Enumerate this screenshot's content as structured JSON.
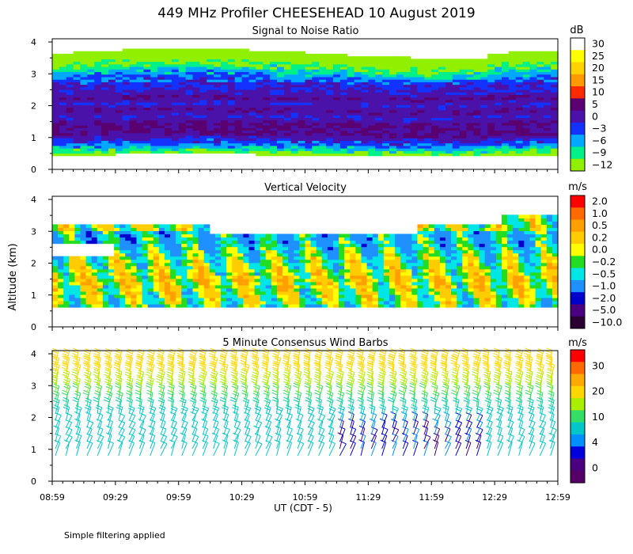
{
  "title": "449 MHz Profiler CHEESEHEAD 10 August 2019",
  "footnote": "Simple filtering applied",
  "ylabel": "Altitude (km)",
  "xlabel": "UT  (CDT - 5)",
  "chart_data": [
    {
      "type": "heatmap",
      "title": "Signal to Noise Ratio",
      "xlabel": "UT  (CDT - 5)",
      "ylabel": "Altitude (km)",
      "x_ticks": [
        "08:59",
        "09:29",
        "09:59",
        "10:29",
        "10:59",
        "11:29",
        "11:59",
        "12:29",
        "12:59"
      ],
      "xlim": [
        "08:59",
        "12:59"
      ],
      "y_ticks": [
        "0",
        "1",
        "2",
        "3",
        "4"
      ],
      "ylim": [
        0,
        4.1
      ],
      "colorbar_unit": "dB",
      "colorbar_labels": [
        "30",
        "25",
        "20",
        "15",
        "10",
        "5",
        "0",
        "−3",
        "−6",
        "−9",
        "−12"
      ],
      "colorbar_colors": [
        "#ffffff",
        "#ffff00",
        "#ffd200",
        "#ff9a00",
        "#ff2a00",
        "#5a0070",
        "#4a12a8",
        "#1432ff",
        "#00a8ff",
        "#00f08a",
        "#90f000"
      ],
      "profile_km": [
        0.4,
        0.5,
        0.6,
        0.75,
        0.9,
        1.05,
        1.2,
        1.4,
        1.6,
        1.8,
        2.0,
        2.2,
        2.4,
        2.6,
        2.8,
        3.0,
        3.2,
        3.4,
        3.6
      ],
      "profile_snr_db": [
        -12,
        -9,
        -6,
        -3,
        0,
        5,
        5,
        5,
        0,
        5,
        0,
        5,
        0,
        0,
        -3,
        -6,
        -9,
        -12,
        -12
      ]
    },
    {
      "type": "heatmap",
      "title": "Vertical Velocity",
      "xlabel": "UT  (CDT - 5)",
      "ylabel": "Altitude (km)",
      "x_ticks": [
        "08:59",
        "09:29",
        "09:59",
        "10:29",
        "10:59",
        "11:29",
        "11:59",
        "12:29",
        "12:59"
      ],
      "y_ticks": [
        "0",
        "1",
        "2",
        "3",
        "4"
      ],
      "ylim": [
        0,
        4.1
      ],
      "colorbar_unit": "m/s",
      "colorbar_labels": [
        "2.0",
        "1.0",
        "0.5",
        "0.2",
        "0.0",
        "−0.2",
        "−0.5",
        "−1.0",
        "−2.0",
        "−5.0",
        "−10.0"
      ],
      "colorbar_colors": [
        "#ff0000",
        "#ff6a00",
        "#ffa000",
        "#ffcc00",
        "#ffff00",
        "#22dd22",
        "#00e6e6",
        "#1e90ff",
        "#0000cd",
        "#4b0082",
        "#2a0033"
      ],
      "profile_km": [
        0.6,
        1.0,
        1.4,
        1.8,
        2.2,
        2.6,
        3.0
      ],
      "profile_w_ms": [
        -0.2,
        0.0,
        0.2,
        0.0,
        -0.2,
        -0.5,
        -0.5
      ]
    },
    {
      "type": "scatter",
      "title": "5 Minute Consensus Wind Barbs",
      "xlabel": "UT  (CDT - 5)",
      "ylabel": "Altitude (km)",
      "x_ticks": [
        "08:59",
        "09:29",
        "09:59",
        "10:29",
        "10:59",
        "11:29",
        "11:59",
        "12:29",
        "12:59"
      ],
      "y_ticks": [
        "0",
        "1",
        "2",
        "3",
        "4"
      ],
      "ylim": [
        0,
        4.1
      ],
      "colorbar_unit": "m/s",
      "colorbar_labels": [
        "30",
        "20",
        "10",
        "4",
        "0"
      ],
      "colorbar_colors": [
        "#ff0000",
        "#ff6a00",
        "#ffaa00",
        "#ffd700",
        "#aaee00",
        "#33dd66",
        "#00c8c8",
        "#0090ff",
        "#0000dd",
        "#4b0082",
        "#550066"
      ],
      "profile_km": [
        0.8,
        1.2,
        1.6,
        2.0,
        2.4,
        2.8,
        3.2,
        3.6
      ],
      "profile_speed_ms": [
        6,
        7,
        7,
        8,
        10,
        14,
        17,
        18
      ]
    }
  ]
}
